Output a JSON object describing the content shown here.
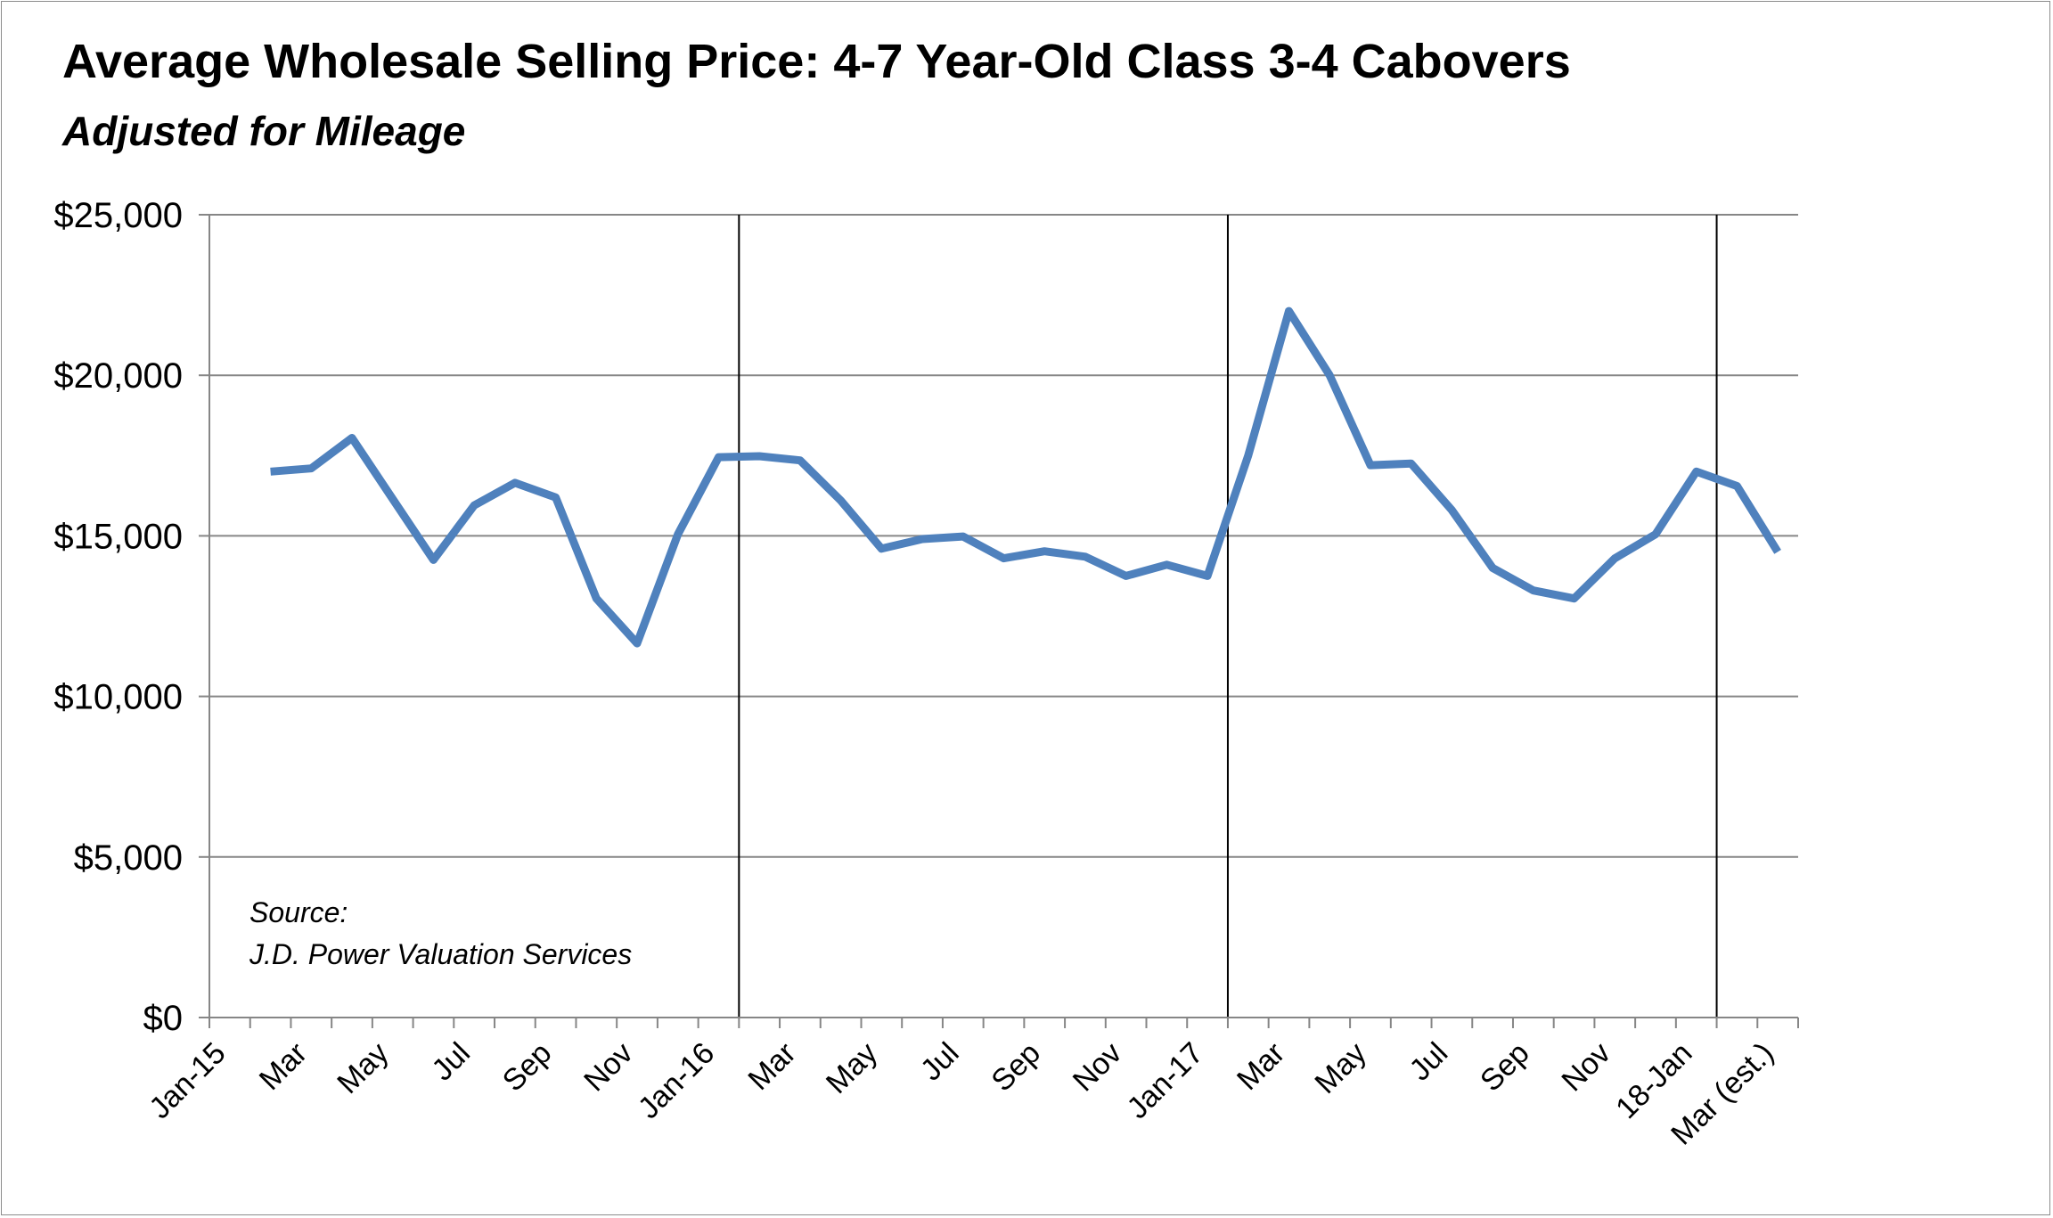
{
  "chart_data": {
    "type": "line",
    "title": "Average Wholesale Selling Price: 4-7 Year-Old Class 3-4 Cabovers",
    "subtitle": "Adjusted for Mileage",
    "xlabel": "",
    "ylabel": "",
    "ylim": [
      0,
      25000
    ],
    "y_ticks": [
      {
        "value": 0,
        "label": "$0"
      },
      {
        "value": 5000,
        "label": "$5,000"
      },
      {
        "value": 10000,
        "label": "$10,000"
      },
      {
        "value": 15000,
        "label": "$15,000"
      },
      {
        "value": 20000,
        "label": "$20,000"
      },
      {
        "value": 25000,
        "label": "$25,000"
      }
    ],
    "grid": true,
    "legend": "none",
    "x_tick_labels": [
      "Jan-15",
      "Mar",
      "May",
      "Jul",
      "Sep",
      "Nov",
      "Jan-16",
      "Mar",
      "May",
      "Jul",
      "Sep",
      "Nov",
      "Jan-17",
      "Mar",
      "May",
      "Jul",
      "Sep",
      "Nov",
      "18-Jan",
      "Mar (est.)"
    ],
    "year_dividers_after_index": [
      11,
      23,
      35
    ],
    "series": [
      {
        "color": "#4f81bd",
        "values": [
          17000,
          17100,
          18050,
          16150,
          14250,
          15950,
          16650,
          16200,
          13050,
          11650,
          15050,
          17450,
          17480,
          17350,
          16100,
          14600,
          14900,
          14980,
          14300,
          14520,
          14350,
          13750,
          14100,
          13750,
          17500,
          22000,
          20000,
          17200,
          17250,
          15800,
          14000,
          13300,
          13050,
          14300,
          15050,
          17000,
          16550,
          14500
        ]
      }
    ],
    "annotation": {
      "line1": "Source:",
      "line2": "J.D. Power Valuation Services"
    },
    "colors": {
      "line": "#4f81bd",
      "grid": "#868686",
      "divider": "#000000",
      "axis": "#868686"
    }
  }
}
